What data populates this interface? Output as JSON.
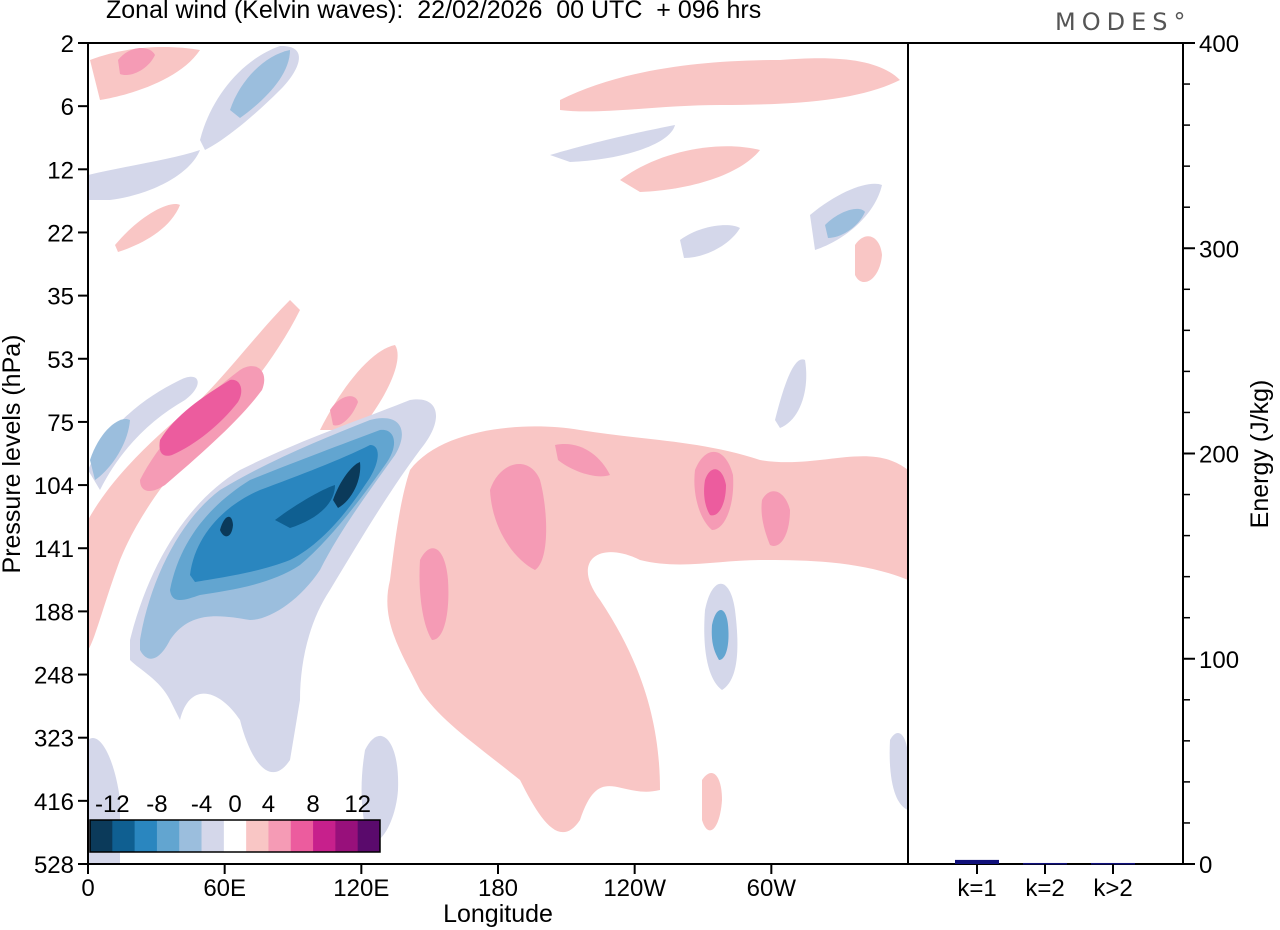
{
  "header": {
    "title": "Zonal wind (Kelvin waves):  22/02/2026  00 UTC  + 096 hrs",
    "brand": "MODES°"
  },
  "chart_data": [
    {
      "type": "heatmap",
      "title": "Zonal wind (Kelvin waves):  22/02/2026  00 UTC  + 096 hrs",
      "xlabel": "Longitude",
      "ylabel": "Pressure levels (hPa)",
      "x_ticks": [
        "0",
        "60E",
        "120E",
        "180",
        "120W",
        "60W"
      ],
      "x_range_deg": [
        0,
        360
      ],
      "y_ticks": [
        "2",
        "6",
        "12",
        "22",
        "35",
        "53",
        "75",
        "104",
        "141",
        "188",
        "248",
        "323",
        "416",
        "528"
      ],
      "colorbar": {
        "labels": [
          "-12",
          "-8",
          "-4",
          "0",
          "4",
          "8",
          "12"
        ],
        "colors": [
          "#0b3a5a",
          "#0f5f91",
          "#2a86bf",
          "#62a5d0",
          "#9bbedd",
          "#d4d7ea",
          "#ffffff",
          "#f9c6c5",
          "#f59bb5",
          "#ec5c9e",
          "#c7208c",
          "#98107b",
          "#5a0a6c"
        ]
      },
      "features": [
        {
          "label": "-12",
          "lon": 110,
          "level": "104"
        },
        {
          "label": "-12",
          "lon": 60,
          "level": "141"
        },
        {
          "label": "8",
          "lon": 45,
          "level": "75"
        },
        {
          "label": "8",
          "lon": 275,
          "level": "104"
        },
        {
          "label": "-8",
          "lon": 276,
          "level": "188"
        },
        {
          "label": "-4",
          "lon": 320,
          "level": "22"
        }
      ]
    },
    {
      "type": "bar",
      "ylabel": "Energy (J/kg)",
      "categories": [
        "k=1",
        "k=2",
        "k>2"
      ],
      "values": [
        2,
        0.5,
        0.5
      ],
      "ylim": [
        0,
        400
      ],
      "y_ticks": [
        "0",
        "100",
        "200",
        "300",
        "400"
      ],
      "bar_color": "#10107a"
    }
  ]
}
